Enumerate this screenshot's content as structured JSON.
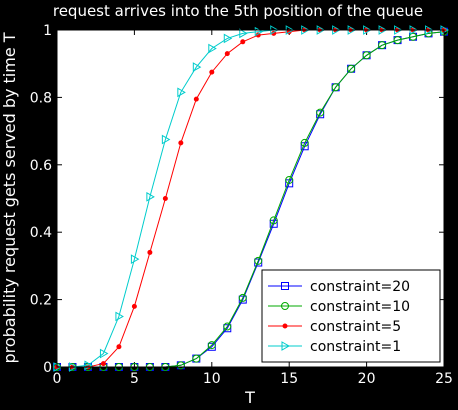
{
  "chart_data": {
    "type": "line",
    "title": "request arrives into the 5th position of the queue",
    "xlabel": "T",
    "ylabel": "probability request gets served by time T",
    "xlim": [
      0,
      25
    ],
    "ylim": [
      0,
      1
    ],
    "xticks": [
      0,
      5,
      10,
      15,
      20,
      25
    ],
    "yticks": [
      0,
      0.2,
      0.4,
      0.6,
      0.8,
      1
    ],
    "grid": false,
    "legend_position": "bottom-right",
    "x": [
      0,
      1,
      2,
      3,
      4,
      5,
      6,
      7,
      8,
      9,
      10,
      11,
      12,
      13,
      14,
      15,
      16,
      17,
      18,
      19,
      20,
      21,
      22,
      23,
      24,
      25
    ],
    "series": [
      {
        "name": "constraint=20",
        "color": "#0000ff",
        "marker": "square",
        "values": [
          0,
          0,
          0,
          0,
          0,
          0,
          0,
          0,
          0.005,
          0.025,
          0.06,
          0.115,
          0.2,
          0.31,
          0.425,
          0.545,
          0.655,
          0.75,
          0.83,
          0.885,
          0.925,
          0.955,
          0.97,
          0.98,
          0.99,
          0.995
        ]
      },
      {
        "name": "constraint=10",
        "color": "#00aa00",
        "marker": "circle",
        "values": [
          0,
          0,
          0,
          0,
          0,
          0,
          0,
          0,
          0.005,
          0.025,
          0.065,
          0.12,
          0.205,
          0.315,
          0.435,
          0.555,
          0.665,
          0.755,
          0.83,
          0.885,
          0.925,
          0.955,
          0.97,
          0.98,
          0.99,
          0.995
        ]
      },
      {
        "name": "constraint=5",
        "color": "#ff0000",
        "marker": "dot",
        "values": [
          0,
          0,
          0,
          0.01,
          0.06,
          0.18,
          0.34,
          0.5,
          0.665,
          0.795,
          0.875,
          0.93,
          0.965,
          0.985,
          0.99,
          0.995,
          1,
          1,
          1,
          1,
          1,
          1,
          1,
          1,
          1,
          1
        ]
      },
      {
        "name": "constraint=1",
        "color": "#00cccc",
        "marker": "triangle-right",
        "values": [
          0,
          0,
          0.005,
          0.04,
          0.15,
          0.32,
          0.505,
          0.675,
          0.815,
          0.89,
          0.945,
          0.975,
          0.99,
          0.995,
          1,
          1,
          1,
          1,
          1,
          1,
          1,
          1,
          1,
          1,
          1,
          1
        ]
      }
    ]
  }
}
